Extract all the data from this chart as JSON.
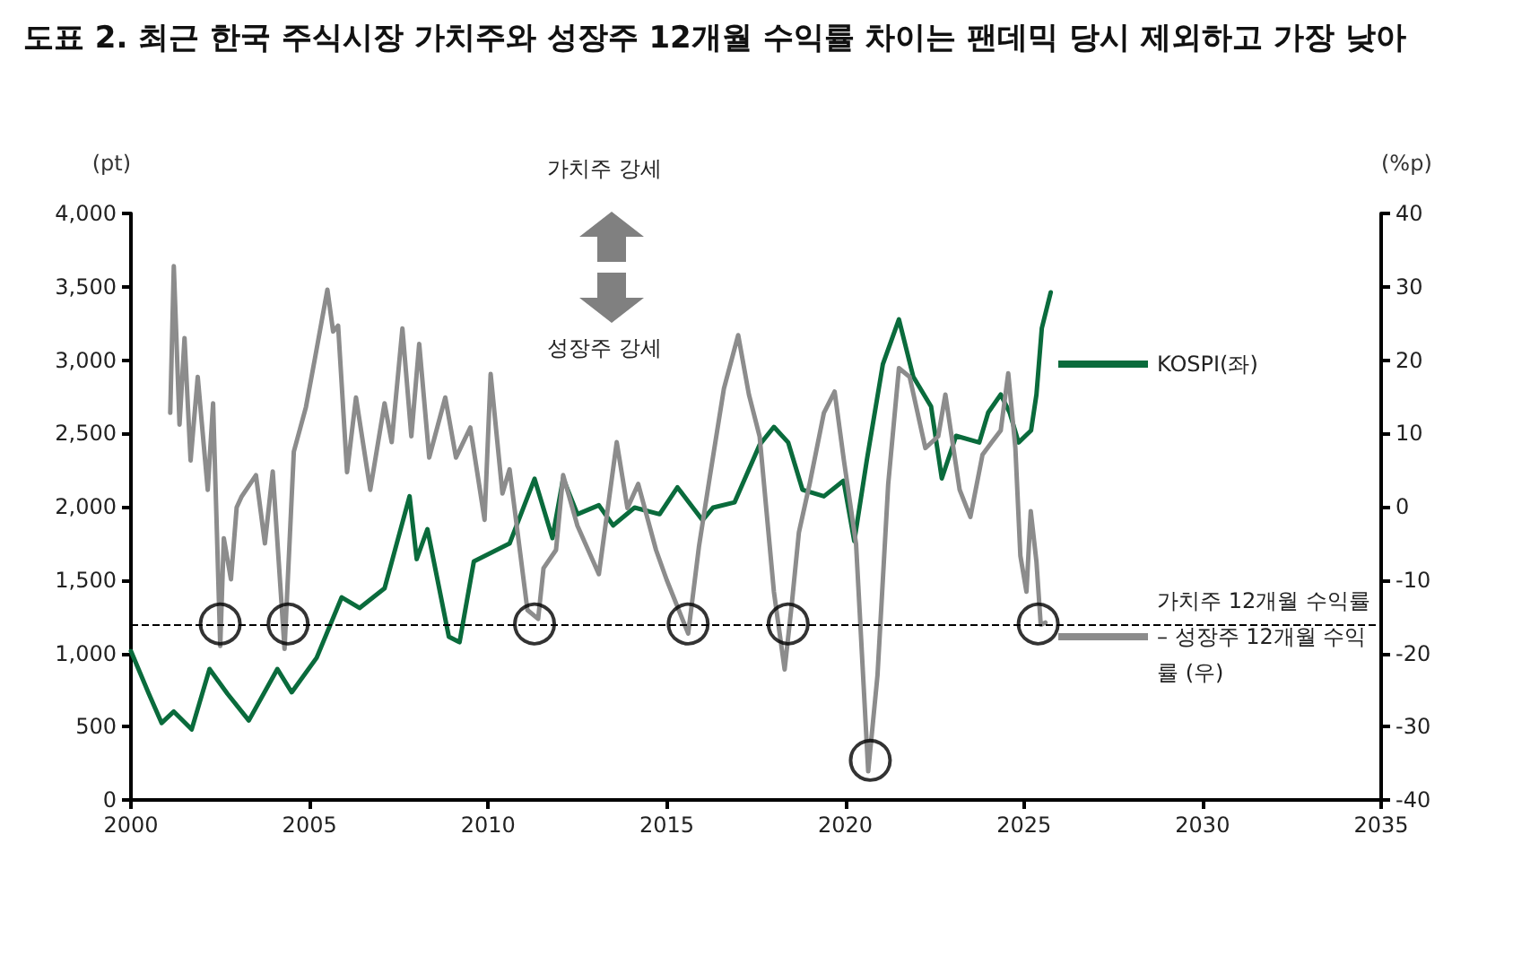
{
  "chart_data": {
    "type": "line",
    "title": "도표 2. 최근 한국 주식시장 가치주와 성장주 12개월 수익률 차이는 팬데믹 당시 제외하고 가장 낮아",
    "ylabel": "(pt)",
    "y2label": "(%p)",
    "annotations": [
      "가치주 강세",
      "성장주 강세"
    ],
    "xlim": [
      2000,
      2035
    ],
    "xticks": [
      2000,
      2005,
      2010,
      2015,
      2020,
      2025,
      2030,
      2035
    ],
    "ylim": [
      0,
      4000
    ],
    "yticks": [
      0,
      500,
      {
        "value": 1000,
        "label": "1,000"
      },
      {
        "value": 1500,
        "label": "1,500"
      },
      {
        "value": 2000,
        "label": "2,000"
      },
      {
        "value": 2500,
        "label": "2,500"
      },
      {
        "value": 3000,
        "label": "3,000"
      },
      {
        "value": 3500,
        "label": "3,500"
      },
      {
        "value": 4000,
        "label": "4,000"
      }
    ],
    "y2lim": [
      -40,
      40
    ],
    "y2ticks": [
      -40,
      -30,
      -20,
      -10,
      0,
      10,
      20,
      30,
      40
    ],
    "grid": false,
    "legend": "right",
    "marker": "none",
    "line_style": "solid",
    "ref_lines": [
      {
        "axis": "y2",
        "value": -16,
        "color": "#000000",
        "line_style": "dashed"
      }
    ],
    "series": [
      {
        "name": "KOSPI(좌)",
        "color": "#0a6b3c",
        "x": [
          2000.0,
          2000.5,
          2000.86,
          2001.2,
          2001.7,
          2002.2,
          2002.7,
          2003.3,
          2004.1,
          2004.5,
          2005.2,
          2005.9,
          2006.4,
          2007.1,
          2007.8,
          2008.0,
          2008.3,
          2008.9,
          2009.2,
          2009.6,
          2010.6,
          2011.3,
          2011.8,
          2012.1,
          2012.5,
          2013.1,
          2013.5,
          2014.1,
          2014.8,
          2015.3,
          2016.0,
          2016.3,
          2016.9,
          2017.6,
          2018.0,
          2018.4,
          2018.8,
          2019.4,
          2019.95,
          2020.25,
          2020.6,
          2021.05,
          2021.5,
          2021.9,
          2022.4,
          2022.7,
          2023.1,
          2023.75,
          2024.0,
          2024.35,
          2024.6,
          2024.85,
          2025.2,
          2025.35,
          2025.5,
          2025.75
        ],
        "values": [
          1015,
          725,
          525,
          603,
          481,
          893,
          725,
          542,
          893,
          734,
          970,
          1382,
          1309,
          1443,
          2071,
          1643,
          1847,
          1113,
          1076,
          1627,
          1749,
          2190,
          1786,
          2193,
          1949,
          2010,
          1872,
          1994,
          1949,
          2132,
          1908,
          1994,
          2030,
          2422,
          2544,
          2438,
          2116,
          2071,
          2177,
          1765,
          2316,
          2972,
          3278,
          2887,
          2683,
          2193,
          2483,
          2438,
          2642,
          2765,
          2642,
          2438,
          2520,
          2765,
          3217,
          3462
        ]
      },
      {
        "name": "가치주 12개월 수익률 – 성장주 12개월 수익률 (우)",
        "color": "#8c8c8c",
        "axis": "y2",
        "x": [
          2001.1,
          2001.2,
          2001.36,
          2001.5,
          2001.67,
          2001.87,
          2002.15,
          2002.3,
          2002.5,
          2002.6,
          2002.8,
          2002.96,
          2003.1,
          2003.5,
          2003.75,
          2003.97,
          2004.3,
          2004.56,
          2004.9,
          2005.15,
          2005.5,
          2005.66,
          2005.8,
          2006.05,
          2006.3,
          2006.7,
          2007.1,
          2007.3,
          2007.6,
          2007.85,
          2008.07,
          2008.35,
          2008.8,
          2009.1,
          2009.5,
          2009.9,
          2010.07,
          2010.4,
          2010.6,
          2011.1,
          2011.4,
          2011.55,
          2011.9,
          2012.1,
          2012.5,
          2013.1,
          2013.6,
          2013.9,
          2014.2,
          2014.7,
          2015.0,
          2015.6,
          2015.9,
          2016.2,
          2016.6,
          2017.0,
          2017.3,
          2017.6,
          2018.0,
          2018.3,
          2018.5,
          2018.7,
          2019.0,
          2019.4,
          2019.7,
          2019.96,
          2020.3,
          2020.64,
          2020.9,
          2021.2,
          2021.5,
          2021.8,
          2022.24,
          2022.6,
          2022.8,
          2023.2,
          2023.5,
          2023.84,
          2024.1,
          2024.35,
          2024.56,
          2024.76,
          2024.9,
          2025.07,
          2025.19,
          2025.35,
          2025.47,
          2025.6
        ],
        "values": [
          12.8,
          32.8,
          11.2,
          23.0,
          6.3,
          17.7,
          2.3,
          14.1,
          -19.0,
          -4.3,
          -9.9,
          -0.1,
          1.4,
          4.3,
          -5.0,
          4.8,
          -19.4,
          7.5,
          13.6,
          20.2,
          29.6,
          23.9,
          24.7,
          4.7,
          14.9,
          2.3,
          14.1,
          8.8,
          24.3,
          9.6,
          22.2,
          6.7,
          14.9,
          6.7,
          10.8,
          -1.8,
          18.1,
          1.8,
          5.1,
          -14.1,
          -15.3,
          -8.4,
          -5.9,
          4.3,
          -2.6,
          -9.2,
          8.8,
          -0.2,
          3.1,
          -5.9,
          -10.0,
          -17.3,
          -5.5,
          3.9,
          16.1,
          23.4,
          15.3,
          9.6,
          -11.6,
          -22.2,
          -13.3,
          -3.5,
          3.1,
          12.8,
          15.7,
          6.3,
          -5.1,
          -36.1,
          -23.0,
          3.1,
          18.9,
          17.7,
          8.0,
          9.6,
          15.3,
          2.3,
          -1.4,
          7.1,
          8.8,
          10.4,
          18.2,
          8.0,
          -6.7,
          -11.6,
          -0.6,
          -7.5,
          -16.1,
          -15.8
        ]
      },
      {
        "type": "scatter",
        "marker": "circle",
        "color": "#000000",
        "axis": "y2",
        "x": [
          2002.5,
          2004.4,
          2011.3,
          2015.6,
          2018.4,
          2020.7,
          2025.4
        ],
        "values": [
          -16,
          -16,
          -16,
          -16,
          -16,
          -34.6,
          -16
        ]
      }
    ]
  }
}
